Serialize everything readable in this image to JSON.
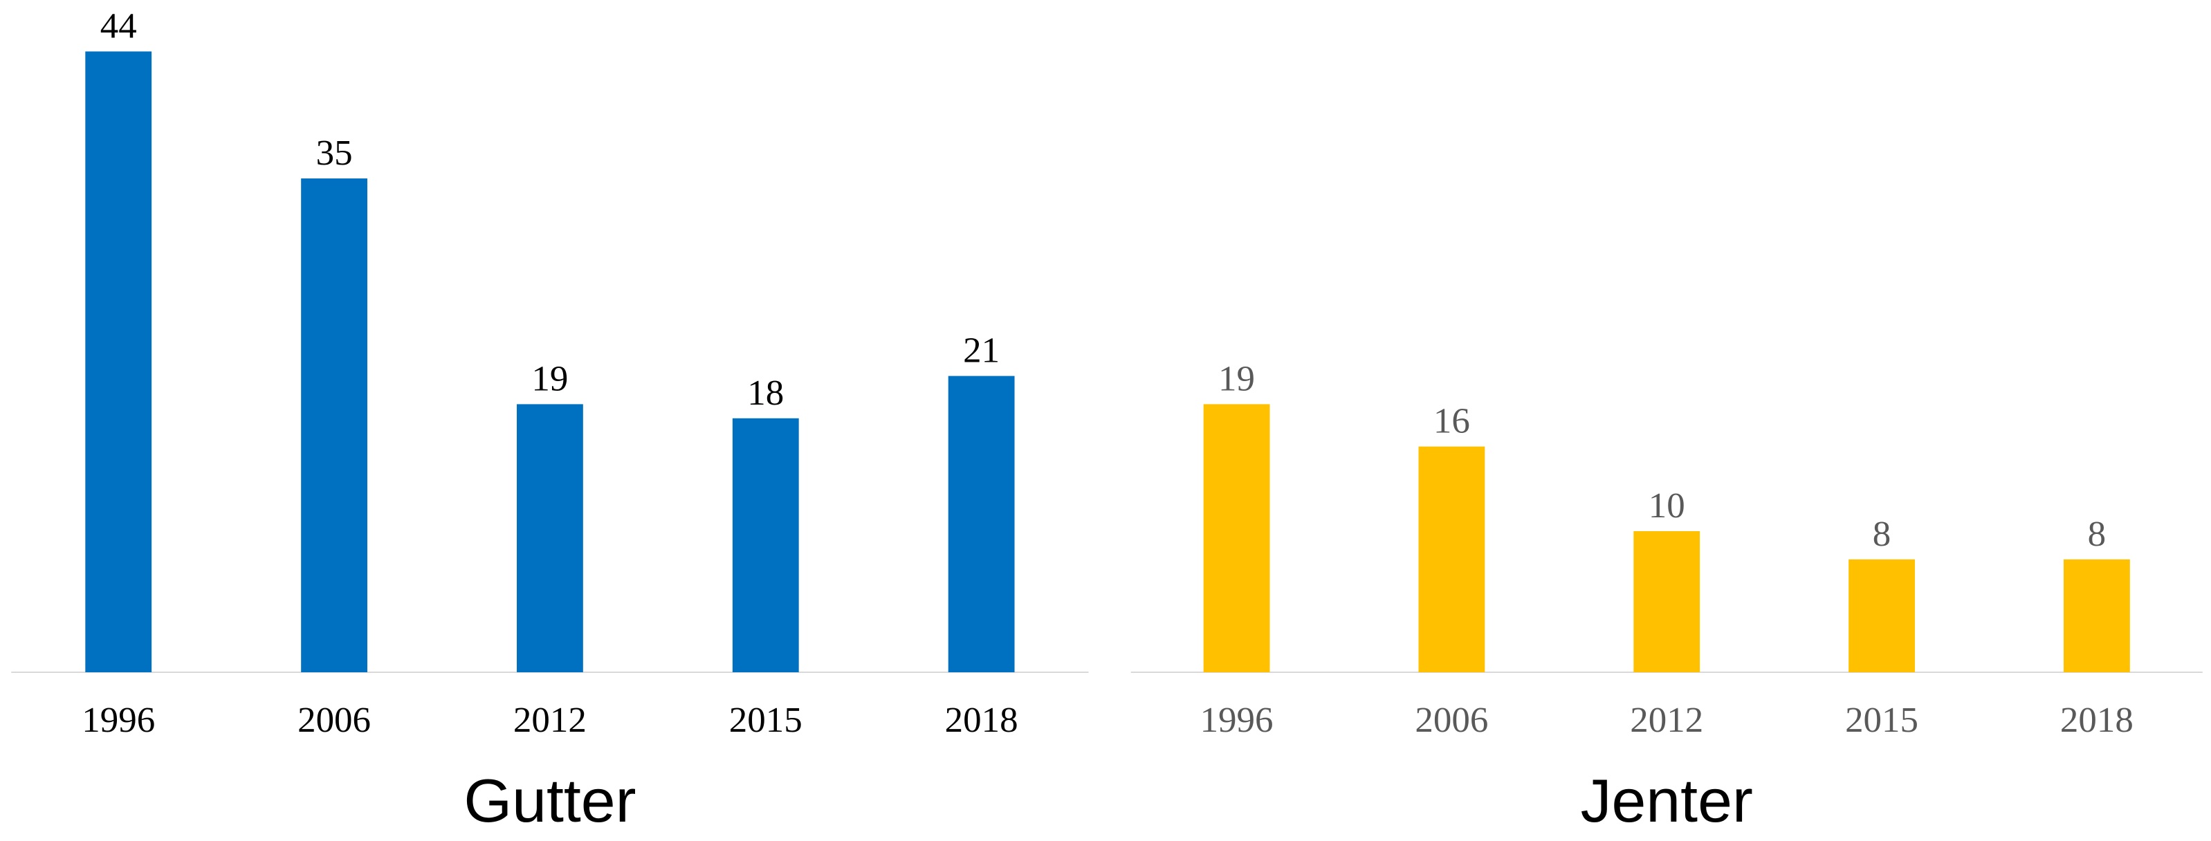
{
  "chart_data": [
    {
      "type": "bar",
      "title": "Gutter",
      "categories": [
        "1996",
        "2006",
        "2012",
        "2015",
        "2018"
      ],
      "values": [
        44,
        35,
        19,
        18,
        21
      ],
      "color": "#0070c0"
    },
    {
      "type": "bar",
      "title": "Jenter",
      "categories": [
        "1996",
        "2006",
        "2012",
        "2015",
        "2018"
      ],
      "values": [
        19,
        16,
        10,
        8,
        8
      ],
      "color": "#ffc000"
    }
  ]
}
